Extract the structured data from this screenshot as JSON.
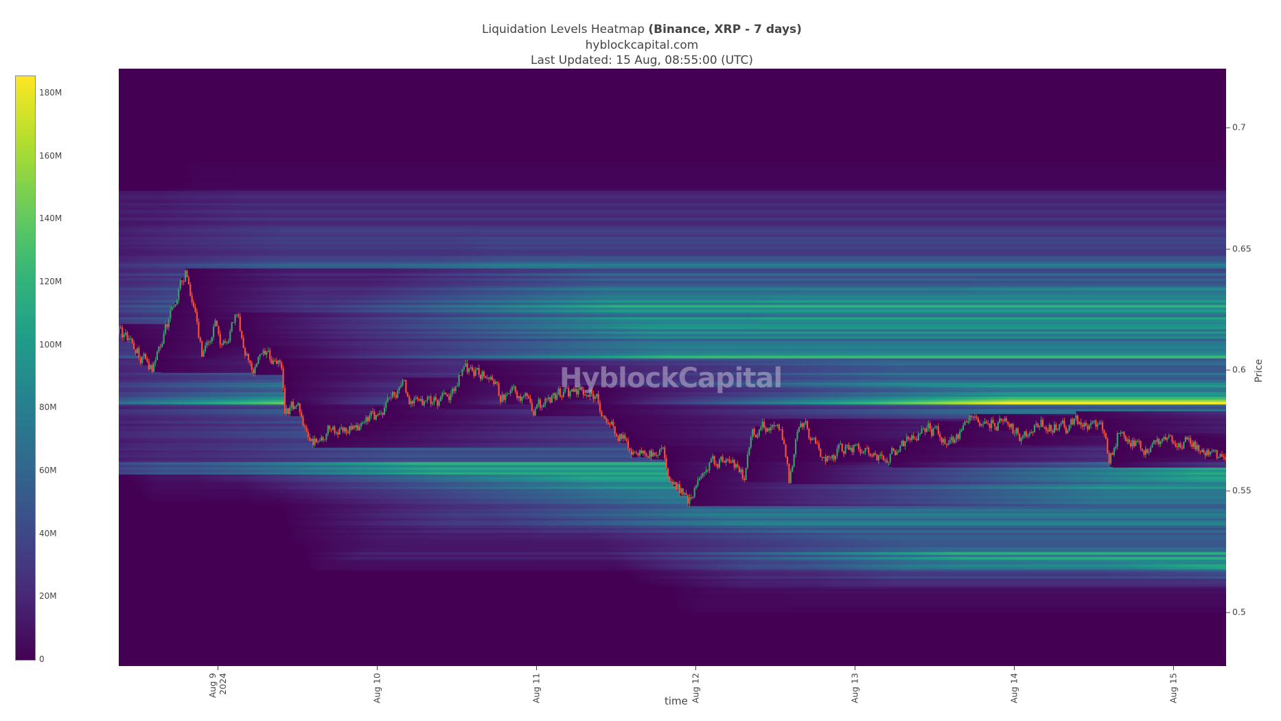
{
  "title": {
    "main": "Liquidation Levels Heatmap ",
    "bold": "(Binance, XRP - 7 days)",
    "subtitle": "hyblockcapital.com",
    "updated": "Last Updated: 15 Aug, 08:55:00 (UTC)"
  },
  "watermark": "HyblockCapital",
  "chart_data": {
    "type": "heatmap",
    "xlabel": "time",
    "ylabel": "Price",
    "xrange": [
      "2024-08-08T09:05",
      "2024-08-15T08:00"
    ],
    "ylim": [
      0.4776,
      0.7241
    ],
    "x_ticks": [
      {
        "date": "2024-08-09",
        "label": "Aug 9\n2024"
      },
      {
        "date": "2024-08-10",
        "label": "Aug 10"
      },
      {
        "date": "2024-08-11",
        "label": "Aug 11"
      },
      {
        "date": "2024-08-12",
        "label": "Aug 12"
      },
      {
        "date": "2024-08-13",
        "label": "Aug 13"
      },
      {
        "date": "2024-08-14",
        "label": "Aug 14"
      },
      {
        "date": "2024-08-15",
        "label": "Aug 15"
      }
    ],
    "y_ticks": [
      {
        "value": 0.5,
        "label": "0.5"
      },
      {
        "value": 0.55,
        "label": "0.55"
      },
      {
        "value": 0.6,
        "label": "0.6"
      },
      {
        "value": 0.65,
        "label": "0.65"
      },
      {
        "value": 0.7,
        "label": "0.7"
      }
    ],
    "colorscale": "viridis",
    "colorbar": {
      "range_M": [
        0,
        185
      ],
      "ticks": [
        {
          "value": 0,
          "label": "0"
        },
        {
          "value": 20,
          "label": "20M"
        },
        {
          "value": 40,
          "label": "40M"
        },
        {
          "value": 60,
          "label": "60M"
        },
        {
          "value": 80,
          "label": "80M"
        },
        {
          "value": 100,
          "label": "100M"
        },
        {
          "value": 120,
          "label": "120M"
        },
        {
          "value": 140,
          "label": "140M"
        },
        {
          "value": 160,
          "label": "160M"
        },
        {
          "value": 180,
          "label": "180M"
        }
      ]
    },
    "liquidation_levels_M": [
      {
        "price_low": 0.69,
        "price_high": 0.7,
        "value": 12
      },
      {
        "price_low": 0.675,
        "price_high": 0.69,
        "value": 22
      },
      {
        "price_low": 0.66,
        "price_high": 0.675,
        "value": 38
      },
      {
        "price_low": 0.645,
        "price_high": 0.66,
        "value": 45
      },
      {
        "price_low": 0.635,
        "price_high": 0.645,
        "value": 70
      },
      {
        "price_low": 0.627,
        "price_high": 0.635,
        "value": 95
      },
      {
        "price_low": 0.6255,
        "price_high": 0.627,
        "value": 130
      },
      {
        "price_low": 0.615,
        "price_high": 0.6255,
        "value": 90
      },
      {
        "price_low": 0.6065,
        "price_high": 0.615,
        "value": 75
      },
      {
        "price_low": 0.605,
        "price_high": 0.6065,
        "value": 125
      },
      {
        "price_low": 0.595,
        "price_high": 0.605,
        "value": 65
      },
      {
        "price_low": 0.589,
        "price_high": 0.595,
        "value": 85
      },
      {
        "price_low": 0.5875,
        "price_high": 0.589,
        "value": 150
      },
      {
        "price_low": 0.5855,
        "price_high": 0.5875,
        "value": 182
      },
      {
        "price_low": 0.58,
        "price_high": 0.5855,
        "value": 60
      },
      {
        "price_low": 0.57,
        "price_high": 0.58,
        "value": 50
      },
      {
        "price_low": 0.562,
        "price_high": 0.57,
        "value": 45
      },
      {
        "price_low": 0.555,
        "price_high": 0.562,
        "value": 110
      },
      {
        "price_low": 0.548,
        "price_high": 0.555,
        "value": 85
      },
      {
        "price_low": 0.535,
        "price_high": 0.548,
        "value": 70
      },
      {
        "price_low": 0.525,
        "price_high": 0.535,
        "value": 55
      },
      {
        "price_low": 0.518,
        "price_high": 0.525,
        "value": 95
      },
      {
        "price_low": 0.51,
        "price_high": 0.518,
        "value": 65
      },
      {
        "price_low": 0.5,
        "price_high": 0.51,
        "value": 40
      },
      {
        "price_low": 0.495,
        "price_high": 0.5,
        "value": 20
      }
    ],
    "price_series": {
      "type": "candlestick",
      "up_color": "#3a9f6a",
      "down_color": "#f4503a",
      "points": [
        [
          "2024-08-08T09:00",
          0.615
        ],
        [
          "2024-08-08T11:00",
          0.61
        ],
        [
          "2024-08-08T14:00",
          0.6
        ],
        [
          "2024-08-08T17:00",
          0.625
        ],
        [
          "2024-08-08T19:00",
          0.641
        ],
        [
          "2024-08-08T21:30",
          0.607
        ],
        [
          "2024-08-08T23:30",
          0.618
        ],
        [
          "2024-08-09T00:30",
          0.608
        ],
        [
          "2024-08-09T02:30",
          0.623
        ],
        [
          "2024-08-09T05:20",
          0.597
        ],
        [
          "2024-08-09T06:00",
          0.605
        ],
        [
          "2024-08-09T09:20",
          0.603
        ],
        [
          "2024-08-09T10:00",
          0.583
        ],
        [
          "2024-08-09T12:00",
          0.586
        ],
        [
          "2024-08-09T13:40",
          0.568
        ],
        [
          "2024-08-09T16:40",
          0.575
        ],
        [
          "2024-08-09T21:00",
          0.575
        ],
        [
          "2024-08-10T00:50",
          0.583
        ],
        [
          "2024-08-10T03:50",
          0.593
        ],
        [
          "2024-08-10T05:00",
          0.586
        ],
        [
          "2024-08-10T10:40",
          0.588
        ],
        [
          "2024-08-10T12:50",
          0.6
        ],
        [
          "2024-08-10T16:10",
          0.598
        ],
        [
          "2024-08-10T18:40",
          0.588
        ],
        [
          "2024-08-10T20:35",
          0.593
        ],
        [
          "2024-08-10T23:25",
          0.583
        ],
        [
          "2024-08-11T03:25",
          0.59
        ],
        [
          "2024-08-11T07:05",
          0.591
        ],
        [
          "2024-08-11T08:55",
          0.59
        ],
        [
          "2024-08-11T10:10",
          0.58
        ],
        [
          "2024-08-11T13:15",
          0.571
        ],
        [
          "2024-08-11T15:05",
          0.563
        ],
        [
          "2024-08-11T18:50",
          0.568
        ],
        [
          "2024-08-11T20:05",
          0.556
        ],
        [
          "2024-08-11T22:55",
          0.546
        ],
        [
          "2024-08-12T01:35",
          0.559
        ],
        [
          "2024-08-12T04:05",
          0.563
        ],
        [
          "2024-08-12T07:10",
          0.556
        ],
        [
          "2024-08-12T08:25",
          0.575
        ],
        [
          "2024-08-12T11:30",
          0.578
        ],
        [
          "2024-08-12T13:25",
          0.569
        ],
        [
          "2024-08-12T14:00",
          0.554
        ],
        [
          "2024-08-12T15:15",
          0.575
        ],
        [
          "2024-08-12T16:30",
          0.576
        ],
        [
          "2024-08-12T19:00",
          0.563
        ],
        [
          "2024-08-12T23:20",
          0.568
        ],
        [
          "2024-08-13T04:55",
          0.564
        ],
        [
          "2024-08-13T08:00",
          0.571
        ],
        [
          "2024-08-13T11:05",
          0.576
        ],
        [
          "2024-08-13T14:50",
          0.569
        ],
        [
          "2024-08-13T17:55",
          0.581
        ],
        [
          "2024-08-13T22:10",
          0.578
        ],
        [
          "2024-08-14T01:20",
          0.571
        ],
        [
          "2024-08-14T03:10",
          0.578
        ],
        [
          "2024-08-14T08:05",
          0.576
        ],
        [
          "2024-08-14T10:35",
          0.58
        ],
        [
          "2024-08-14T13:00",
          0.576
        ],
        [
          "2024-08-14T14:15",
          0.563
        ],
        [
          "2024-08-14T15:30",
          0.573
        ],
        [
          "2024-08-14T20:30",
          0.567
        ],
        [
          "2024-08-15T00:50",
          0.57
        ],
        [
          "2024-08-15T04:30",
          0.568
        ],
        [
          "2024-08-15T06:25",
          0.563
        ],
        [
          "2024-08-15T08:00",
          0.565
        ]
      ]
    }
  }
}
